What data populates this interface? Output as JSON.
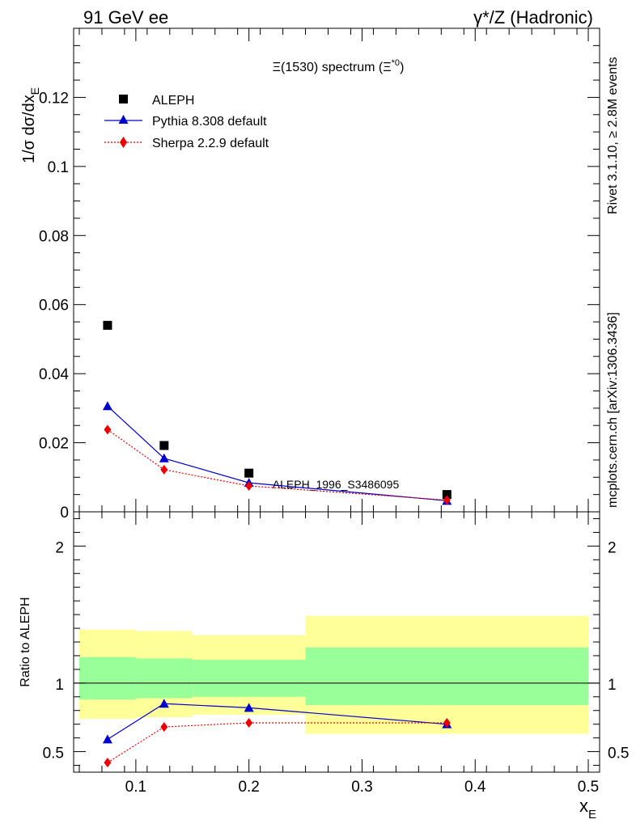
{
  "header": {
    "left": "91 GeV ee",
    "right": "γ*/Z (Hadronic)"
  },
  "side_text": {
    "rivet": "Rivet 3.1.10, ≥ 2.8M events",
    "mcplots": "mcplots.cern.ch [arXiv:1306.3436]"
  },
  "colors": {
    "aleph": "#000000",
    "pythia": "#0000cc",
    "sherpa": "#ee0000",
    "band_inner": "#99ff99",
    "band_outer": "#ffff99",
    "watermark": "#999999"
  },
  "chart_data": [
    {
      "type": "scatter",
      "title": "Ξ(1530) spectrum (Ξ*0)",
      "title_main": "Ξ(1530) spectrum (Ξ",
      "title_sup": "*0",
      "title_end": ")",
      "watermark": "ALEPH_1996_S3486095",
      "ylabel": "1/σ dσ/dx",
      "ylabel_sub": "E",
      "xlim": [
        0.045,
        0.51
      ],
      "ylim": [
        0,
        0.14
      ],
      "yticks": [
        0,
        0.02,
        0.04,
        0.06,
        0.08,
        0.1,
        0.12
      ],
      "ytick_labels": [
        "0",
        "0.02",
        "0.04",
        "0.06",
        "0.08",
        "0.1",
        "0.12"
      ],
      "legend_position": "top-left",
      "series": [
        {
          "name": "ALEPH",
          "marker": "square",
          "x": [
            0.075,
            0.125,
            0.2,
            0.375
          ],
          "y": [
            0.054,
            0.0192,
            0.0112,
            0.005
          ]
        },
        {
          "name": "Pythia 8.308 default",
          "marker": "triangle",
          "line": "solid",
          "x": [
            0.075,
            0.125,
            0.2,
            0.375
          ],
          "y": [
            0.0306,
            0.0155,
            0.0084,
            0.0032
          ]
        },
        {
          "name": "Sherpa 2.2.9 default",
          "marker": "diamond",
          "line": "dotted",
          "x": [
            0.075,
            0.125,
            0.2,
            0.375
          ],
          "y": [
            0.0238,
            0.0122,
            0.0075,
            0.0034
          ]
        }
      ]
    },
    {
      "type": "line",
      "ylabel": "Ratio to ALEPH",
      "xlabel": "x",
      "xlabel_sub": "E",
      "xlim": [
        0.045,
        0.51
      ],
      "ylim": [
        0.35,
        2.25
      ],
      "xticks": [
        0.1,
        0.2,
        0.3,
        0.4,
        0.5
      ],
      "xtick_labels": [
        "0.1",
        "0.2",
        "0.3",
        "0.4",
        "0.5"
      ],
      "yticks": [
        0.5,
        1,
        2
      ],
      "ytick_labels": [
        "0.5",
        "1",
        "2"
      ],
      "reference_line": 1,
      "bands": [
        {
          "x0": 0.05,
          "x1": 0.1,
          "outer": [
            0.74,
            1.39
          ],
          "inner": [
            0.88,
            1.19
          ]
        },
        {
          "x0": 0.1,
          "x1": 0.15,
          "outer": [
            0.75,
            1.38
          ],
          "inner": [
            0.89,
            1.18
          ]
        },
        {
          "x0": 0.15,
          "x1": 0.25,
          "outer": [
            0.77,
            1.35
          ],
          "inner": [
            0.9,
            1.17
          ]
        },
        {
          "x0": 0.25,
          "x1": 0.5,
          "outer": [
            0.63,
            1.49
          ],
          "inner": [
            0.84,
            1.26
          ]
        }
      ],
      "series": [
        {
          "name": "Pythia 8.308 default",
          "x": [
            0.075,
            0.125,
            0.2,
            0.375
          ],
          "y": [
            0.59,
            0.85,
            0.82,
            0.7
          ]
        },
        {
          "name": "Sherpa 2.2.9 default",
          "x": [
            0.075,
            0.125,
            0.2,
            0.375
          ],
          "y": [
            0.42,
            0.68,
            0.71,
            0.71
          ]
        }
      ]
    }
  ]
}
